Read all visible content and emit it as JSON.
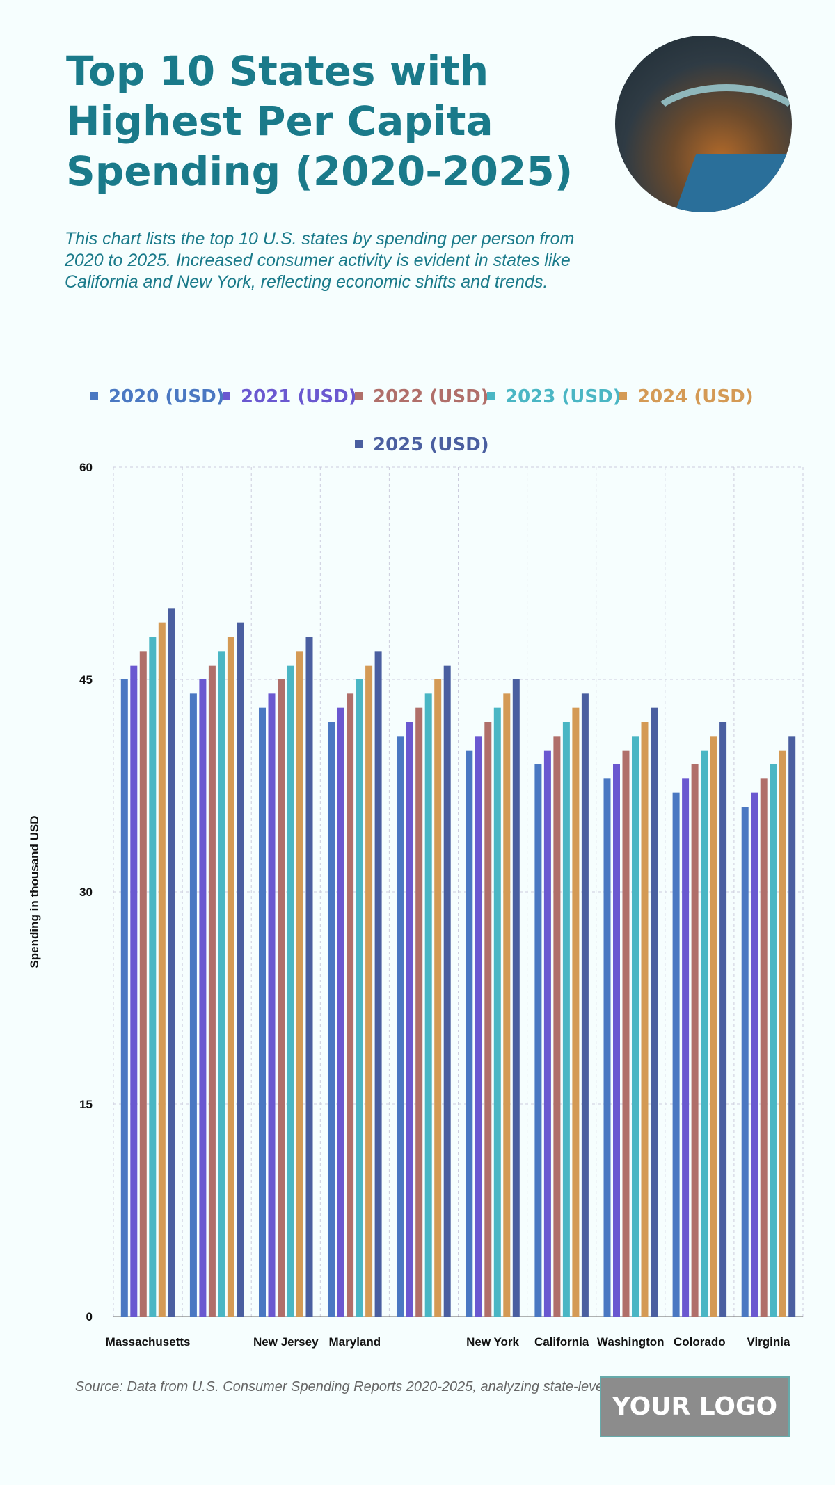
{
  "header": {
    "title": "Top 10 States with Highest Per Capita Spending (2020-2025)",
    "subtitle": "This chart lists the top 10 U.S. states by spending per person from 2020 to 2025. Increased consumer activity is evident in states like California and New York, reflecting economic shifts and trends."
  },
  "footer": {
    "source": "Source: Data from U.S. Consumer Spending Reports 2020-2025, analyzing state-level expenditure behavior.",
    "logo": "YOUR LOGO"
  },
  "chart_data": {
    "type": "bar",
    "title": "Top 10 States with Highest Per Capita Spending (2020-2025)",
    "xlabel": "",
    "ylabel": "Spending in thousand USD",
    "ylim": [
      0,
      60
    ],
    "yticks": [
      0,
      15,
      30,
      45,
      60
    ],
    "grid": true,
    "legend_position": "top",
    "categories": [
      "Massachusetts",
      "",
      "New Jersey",
      "Maryland",
      "",
      "New York",
      "California",
      "Washington",
      "Colorado",
      "Virginia"
    ],
    "series": [
      {
        "name": "2020 (USD)",
        "color": "#4a78c2",
        "values": [
          45,
          44,
          43,
          42,
          41,
          40,
          39,
          38,
          37,
          36
        ]
      },
      {
        "name": "2021 (USD)",
        "color": "#6a58d0",
        "values": [
          46,
          45,
          44,
          43,
          42,
          41,
          40,
          39,
          38,
          37
        ]
      },
      {
        "name": "2022 (USD)",
        "color": "#b06f6a",
        "values": [
          47,
          46,
          45,
          44,
          43,
          42,
          41,
          40,
          39,
          38
        ]
      },
      {
        "name": "2023 (USD)",
        "color": "#4ab6c4",
        "values": [
          48,
          47,
          46,
          45,
          44,
          43,
          42,
          41,
          40,
          39
        ]
      },
      {
        "name": "2024 (USD)",
        "color": "#d49a55",
        "values": [
          49,
          48,
          47,
          46,
          45,
          44,
          43,
          42,
          41,
          40
        ]
      },
      {
        "name": "2025 (USD)",
        "color": "#4a5fa0",
        "values": [
          50,
          49,
          48,
          47,
          46,
          45,
          44,
          43,
          42,
          41
        ]
      }
    ]
  }
}
